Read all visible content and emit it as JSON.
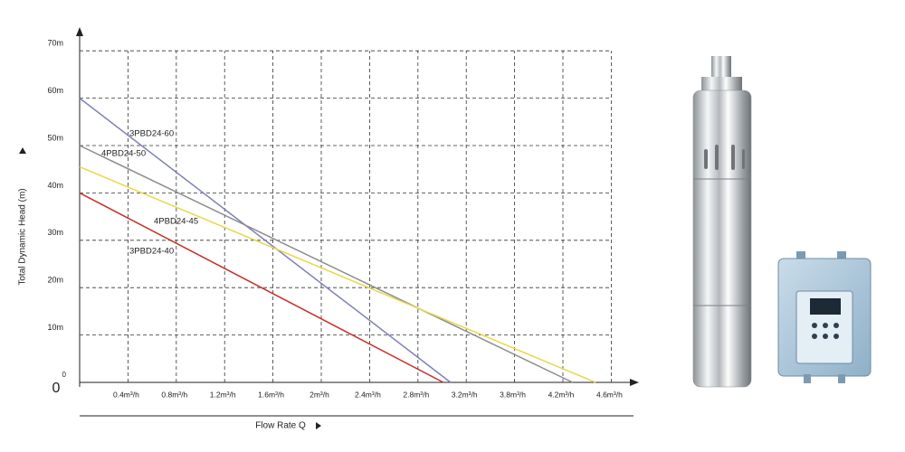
{
  "chart_data": {
    "type": "line",
    "x_label": "Flow Rate Q",
    "y_label": "Total Dynamic Head (m)",
    "origin_label": "0",
    "xlim": [
      0,
      4.6
    ],
    "xticks": [
      {
        "value": 0.4,
        "label": "0.4m³/h"
      },
      {
        "value": 0.8,
        "label": "0.8m³/h"
      },
      {
        "value": 1.2,
        "label": "1.2m³/h"
      },
      {
        "value": 1.6,
        "label": "1.6m³/h"
      },
      {
        "value": 2,
        "label": "2m³/h"
      },
      {
        "value": 2.4,
        "label": "2.4m³/h"
      },
      {
        "value": 2.8,
        "label": "2.8m³/h"
      },
      {
        "value": 3.2,
        "label": "3.2m³/h"
      },
      {
        "value": 3.8,
        "label": "3.8m³/h"
      },
      {
        "value": 4.2,
        "label": "4.2m³/h"
      },
      {
        "value": 4.6,
        "label": "4.6m³/h"
      }
    ],
    "ylim": [
      0,
      70
    ],
    "yticks": [
      0,
      {
        "value": 10,
        "label": "10m"
      },
      {
        "value": 20,
        "label": "20m"
      },
      {
        "value": 30,
        "label": "30m"
      },
      {
        "value": 40,
        "label": "40m"
      },
      {
        "value": 50,
        "label": "50m"
      },
      {
        "value": 60,
        "label": "60m"
      },
      {
        "value": 70,
        "label": "70m"
      }
    ],
    "grid": true,
    "series": [
      {
        "name": "3PBD24-60",
        "color": "#7d80b8",
        "x": [
          0,
          3.07
        ],
        "values": [
          60,
          0
        ]
      },
      {
        "name": "4PBD24-50",
        "color": "#8c8c8c",
        "x": [
          0,
          4.28
        ],
        "values": [
          50,
          0
        ]
      },
      {
        "name": "4PBD24-45",
        "color": "#e6d84a",
        "x": [
          0,
          4.47
        ],
        "values": [
          45.5,
          0
        ]
      },
      {
        "name": "3PBD24-40",
        "color": "#c83028",
        "x": [
          0,
          3.01
        ],
        "values": [
          40,
          0
        ]
      }
    ]
  }
}
